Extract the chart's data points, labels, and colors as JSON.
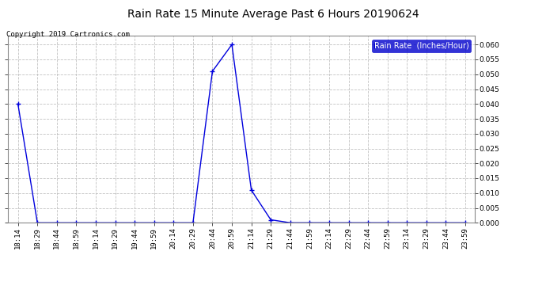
{
  "title": "Rain Rate 15 Minute Average Past 6 Hours 20190624",
  "copyright": "Copyright 2019 Cartronics.com",
  "legend_label": "Rain Rate  (Inches/Hour)",
  "line_color": "#0000dd",
  "background_color": "#ffffff",
  "plot_bg_color": "#ffffff",
  "grid_color": "#bbbbbb",
  "ylim": [
    0.0,
    0.063
  ],
  "yticks": [
    0.0,
    0.005,
    0.01,
    0.015,
    0.02,
    0.025,
    0.03,
    0.035,
    0.04,
    0.045,
    0.05,
    0.055,
    0.06
  ],
  "x_labels": [
    "18:14",
    "18:29",
    "18:44",
    "18:59",
    "19:14",
    "19:29",
    "19:44",
    "19:59",
    "20:14",
    "20:29",
    "20:44",
    "20:59",
    "21:14",
    "21:29",
    "21:44",
    "21:59",
    "22:14",
    "22:29",
    "22:44",
    "22:59",
    "23:14",
    "23:29",
    "23:44",
    "23:59"
  ],
  "y_values": [
    0.04,
    0.0,
    0.0,
    0.0,
    0.0,
    0.0,
    0.0,
    0.0,
    0.0,
    0.0,
    0.051,
    0.06,
    0.011,
    0.001,
    0.0,
    0.0,
    0.0,
    0.0,
    0.0,
    0.0,
    0.0,
    0.0,
    0.0,
    0.0
  ],
  "title_fontsize": 10,
  "copyright_fontsize": 6.5,
  "tick_fontsize": 6.5,
  "legend_fontsize": 7,
  "legend_bg": "#0000cc",
  "legend_fg": "#ffffff"
}
